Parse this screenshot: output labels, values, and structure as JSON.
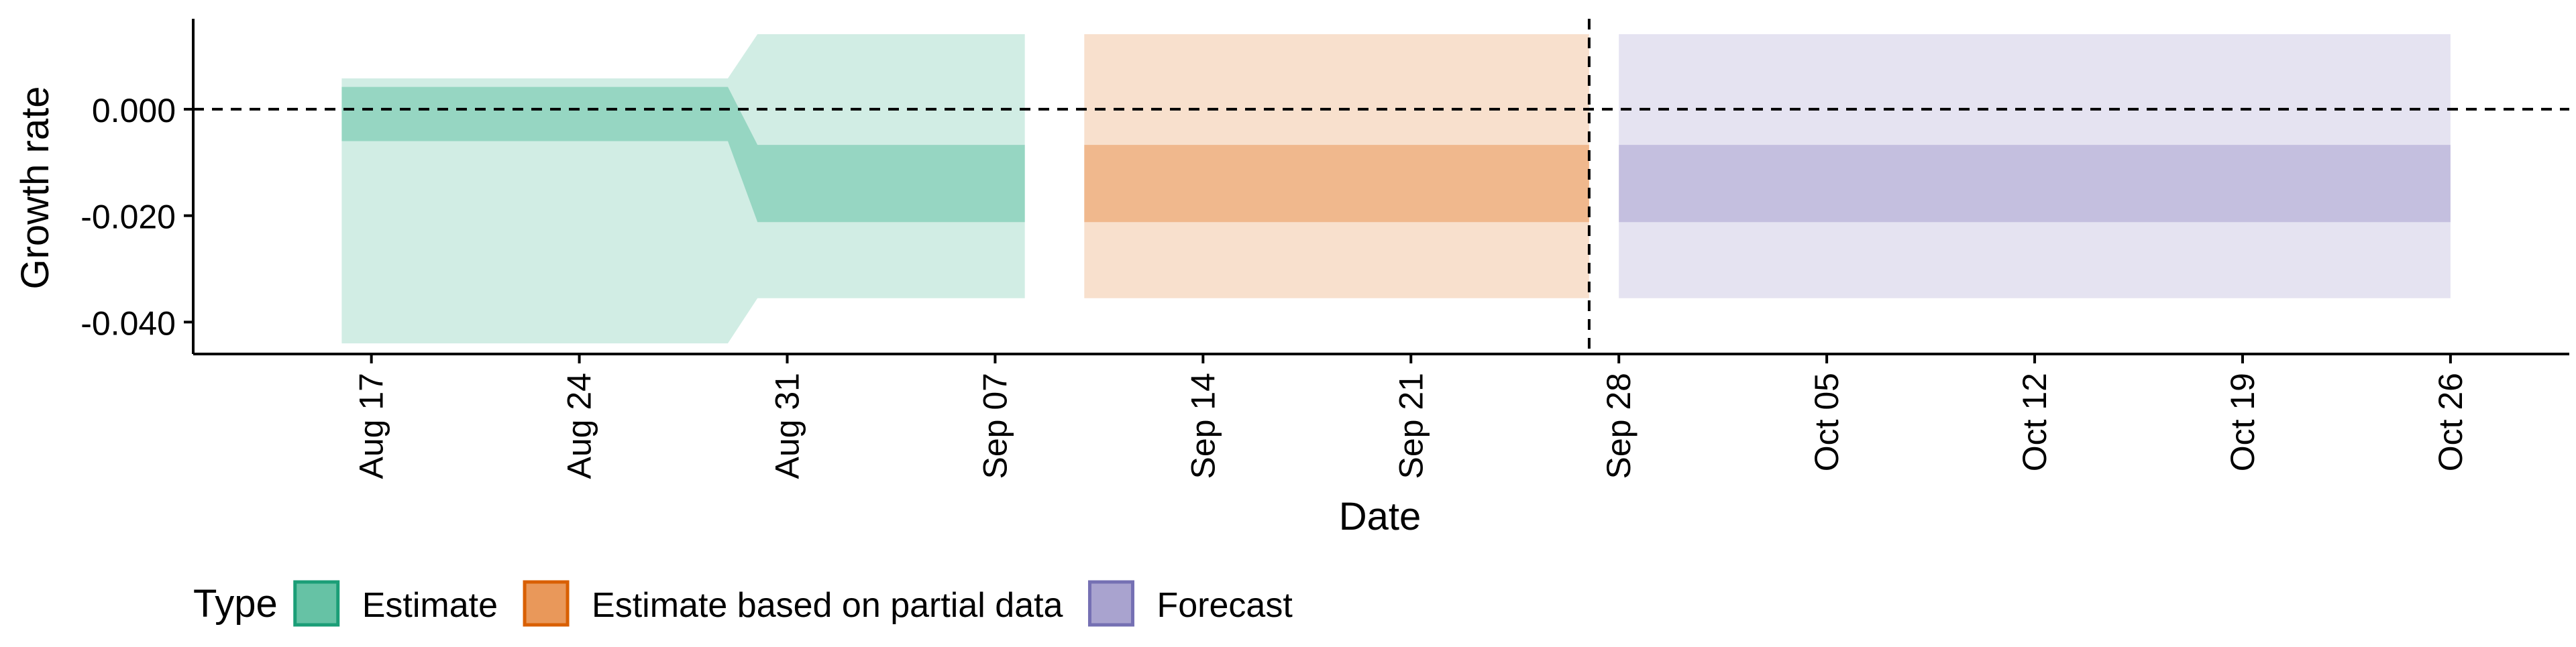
{
  "chart_data": {
    "type": "area",
    "title": "",
    "xlabel": "Date",
    "ylabel": "Growth rate",
    "ylim": [
      -0.046,
      0.017
    ],
    "yticks": [
      0.0,
      -0.02,
      -0.04
    ],
    "ytick_labels": [
      "0.000",
      "-0.020",
      "-0.040"
    ],
    "x_range": [
      "2021-08-11",
      "2021-10-30"
    ],
    "xticks": [
      "2021-08-17",
      "2021-08-24",
      "2021-08-31",
      "2021-09-07",
      "2021-09-14",
      "2021-09-21",
      "2021-09-28",
      "2021-10-05",
      "2021-10-12",
      "2021-10-19",
      "2021-10-26"
    ],
    "xtick_labels": [
      "Aug 17",
      "Aug 24",
      "Aug 31",
      "Sep 07",
      "Sep 14",
      "Sep 21",
      "Sep 28",
      "Oct 05",
      "Oct 12",
      "Oct 19",
      "Oct 26"
    ],
    "reference_lines": {
      "horizontal_y": 0.0,
      "vertical_x": "2021-09-27"
    },
    "grid": false,
    "legend": {
      "title": "Type",
      "position": "bottom-left",
      "entries": [
        {
          "name": "Estimate",
          "fill": "#66c2a5",
          "stroke": "#1b9e77"
        },
        {
          "name": "Estimate based on partial data",
          "fill": "#e9985a",
          "stroke": "#d95f02"
        },
        {
          "name": "Forecast",
          "fill": "#a9a3cf",
          "stroke": "#7570b3"
        }
      ]
    },
    "series": [
      {
        "name": "Estimate",
        "color": "#1b9e77",
        "x": [
          "2021-08-16",
          "2021-08-29",
          "2021-08-30",
          "2021-09-08"
        ],
        "lower_90": [
          -0.044,
          -0.044,
          -0.0355,
          -0.0355
        ],
        "upper_90": [
          0.0058,
          0.0058,
          0.0141,
          0.0141
        ],
        "lower_50": [
          -0.006,
          -0.006,
          -0.0212,
          -0.0212
        ],
        "upper_50": [
          0.0042,
          0.0042,
          -0.0067,
          -0.0067
        ]
      },
      {
        "name": "Estimate based on partial data",
        "color": "#d95f02",
        "x": [
          "2021-09-10",
          "2021-09-27"
        ],
        "lower_90": [
          -0.0355,
          -0.0355
        ],
        "upper_90": [
          0.0141,
          0.0141
        ],
        "lower_50": [
          -0.0212,
          -0.0212
        ],
        "upper_50": [
          -0.0067,
          -0.0067
        ]
      },
      {
        "name": "Forecast",
        "color": "#7570b3",
        "x": [
          "2021-09-28",
          "2021-10-26"
        ],
        "lower_90": [
          -0.0355,
          -0.0355
        ],
        "upper_90": [
          0.0141,
          0.0141
        ],
        "lower_50": [
          -0.0212,
          -0.0212
        ],
        "upper_50": [
          -0.0067,
          -0.0067
        ]
      }
    ]
  }
}
